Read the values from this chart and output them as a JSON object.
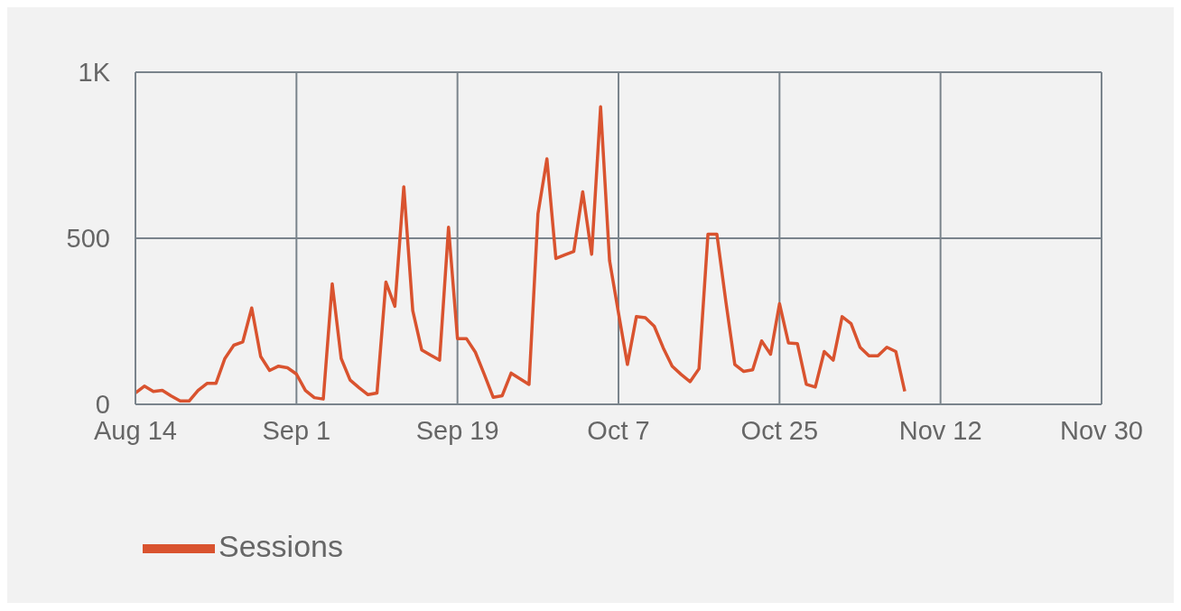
{
  "chart_data": {
    "type": "line",
    "x": [
      "--08-14",
      "--08-15",
      "--08-16",
      "--08-17",
      "--08-18",
      "--08-19",
      "--08-20",
      "--08-21",
      "--08-22",
      "--08-23",
      "--08-24",
      "--08-25",
      "--08-26",
      "--08-27",
      "--08-28",
      "--08-29",
      "--08-30",
      "--08-31",
      "--09-01",
      "--09-02",
      "--09-03",
      "--09-04",
      "--09-05",
      "--09-06",
      "--09-07",
      "--09-08",
      "--09-09",
      "--09-10",
      "--09-11",
      "--09-12",
      "--09-13",
      "--09-14",
      "--09-15",
      "--09-16",
      "--09-17",
      "--09-18",
      "--09-19",
      "--09-20",
      "--09-21",
      "--09-22",
      "--09-23",
      "--09-24",
      "--09-25",
      "--09-26",
      "--09-27",
      "--09-28",
      "--09-29",
      "--09-30",
      "--10-01",
      "--10-02",
      "--10-03",
      "--10-04",
      "--10-05",
      "--10-06",
      "--10-07",
      "--10-08",
      "--10-09",
      "--10-10",
      "--10-11",
      "--10-12",
      "--10-13",
      "--10-14",
      "--10-15",
      "--10-16",
      "--10-17",
      "--10-18",
      "--10-19",
      "--10-20",
      "--10-21",
      "--10-22",
      "--10-23",
      "--10-24",
      "--10-25",
      "--10-26",
      "--10-27",
      "--10-28",
      "--10-29",
      "--10-30",
      "--10-31",
      "--11-01",
      "--11-02",
      "--11-03",
      "--11-04",
      "--11-05",
      "--11-06",
      "--11-07",
      "--11-08"
    ],
    "series": [
      {
        "name": "Sessions",
        "color": "#d9532f",
        "values": [
          34,
          55,
          39,
          42,
          25,
          10,
          10,
          42,
          63,
          63,
          138,
          178,
          188,
          290,
          144,
          102,
          115,
          110,
          91,
          42,
          20,
          16,
          363,
          138,
          73,
          50,
          29,
          34,
          368,
          295,
          655,
          282,
          164,
          148,
          133,
          533,
          198,
          198,
          157,
          90,
          21,
          26,
          94,
          77,
          60,
          574,
          739,
          439,
          450,
          460,
          640,
          452,
          896,
          433,
          275,
          120,
          264,
          261,
          235,
          170,
          115,
          90,
          68,
          107,
          512,
          512,
          310,
          120,
          99,
          104,
          191,
          151,
          303,
          185,
          183,
          60,
          52,
          159,
          133,
          264,
          243,
          172,
          146,
          146,
          172,
          159,
          39
        ]
      }
    ],
    "xlim": [
      "--08-14",
      "--11-30"
    ],
    "xticks": [
      {
        "value": "--08-14",
        "label": "Aug 14"
      },
      {
        "value": "--09-01",
        "label": "Sep 1"
      },
      {
        "value": "--09-19",
        "label": "Sep 19"
      },
      {
        "value": "--10-07",
        "label": "Oct 7"
      },
      {
        "value": "--10-25",
        "label": "Oct 25"
      },
      {
        "value": "--11-12",
        "label": "Nov 12"
      },
      {
        "value": "--11-30",
        "label": "Nov 30"
      }
    ],
    "ylim": [
      0,
      1000
    ],
    "yticks": [
      0,
      500,
      {
        "value": 1000,
        "label": "1K"
      }
    ],
    "grid": true,
    "legend": "bottom left",
    "line_style": "solid"
  }
}
